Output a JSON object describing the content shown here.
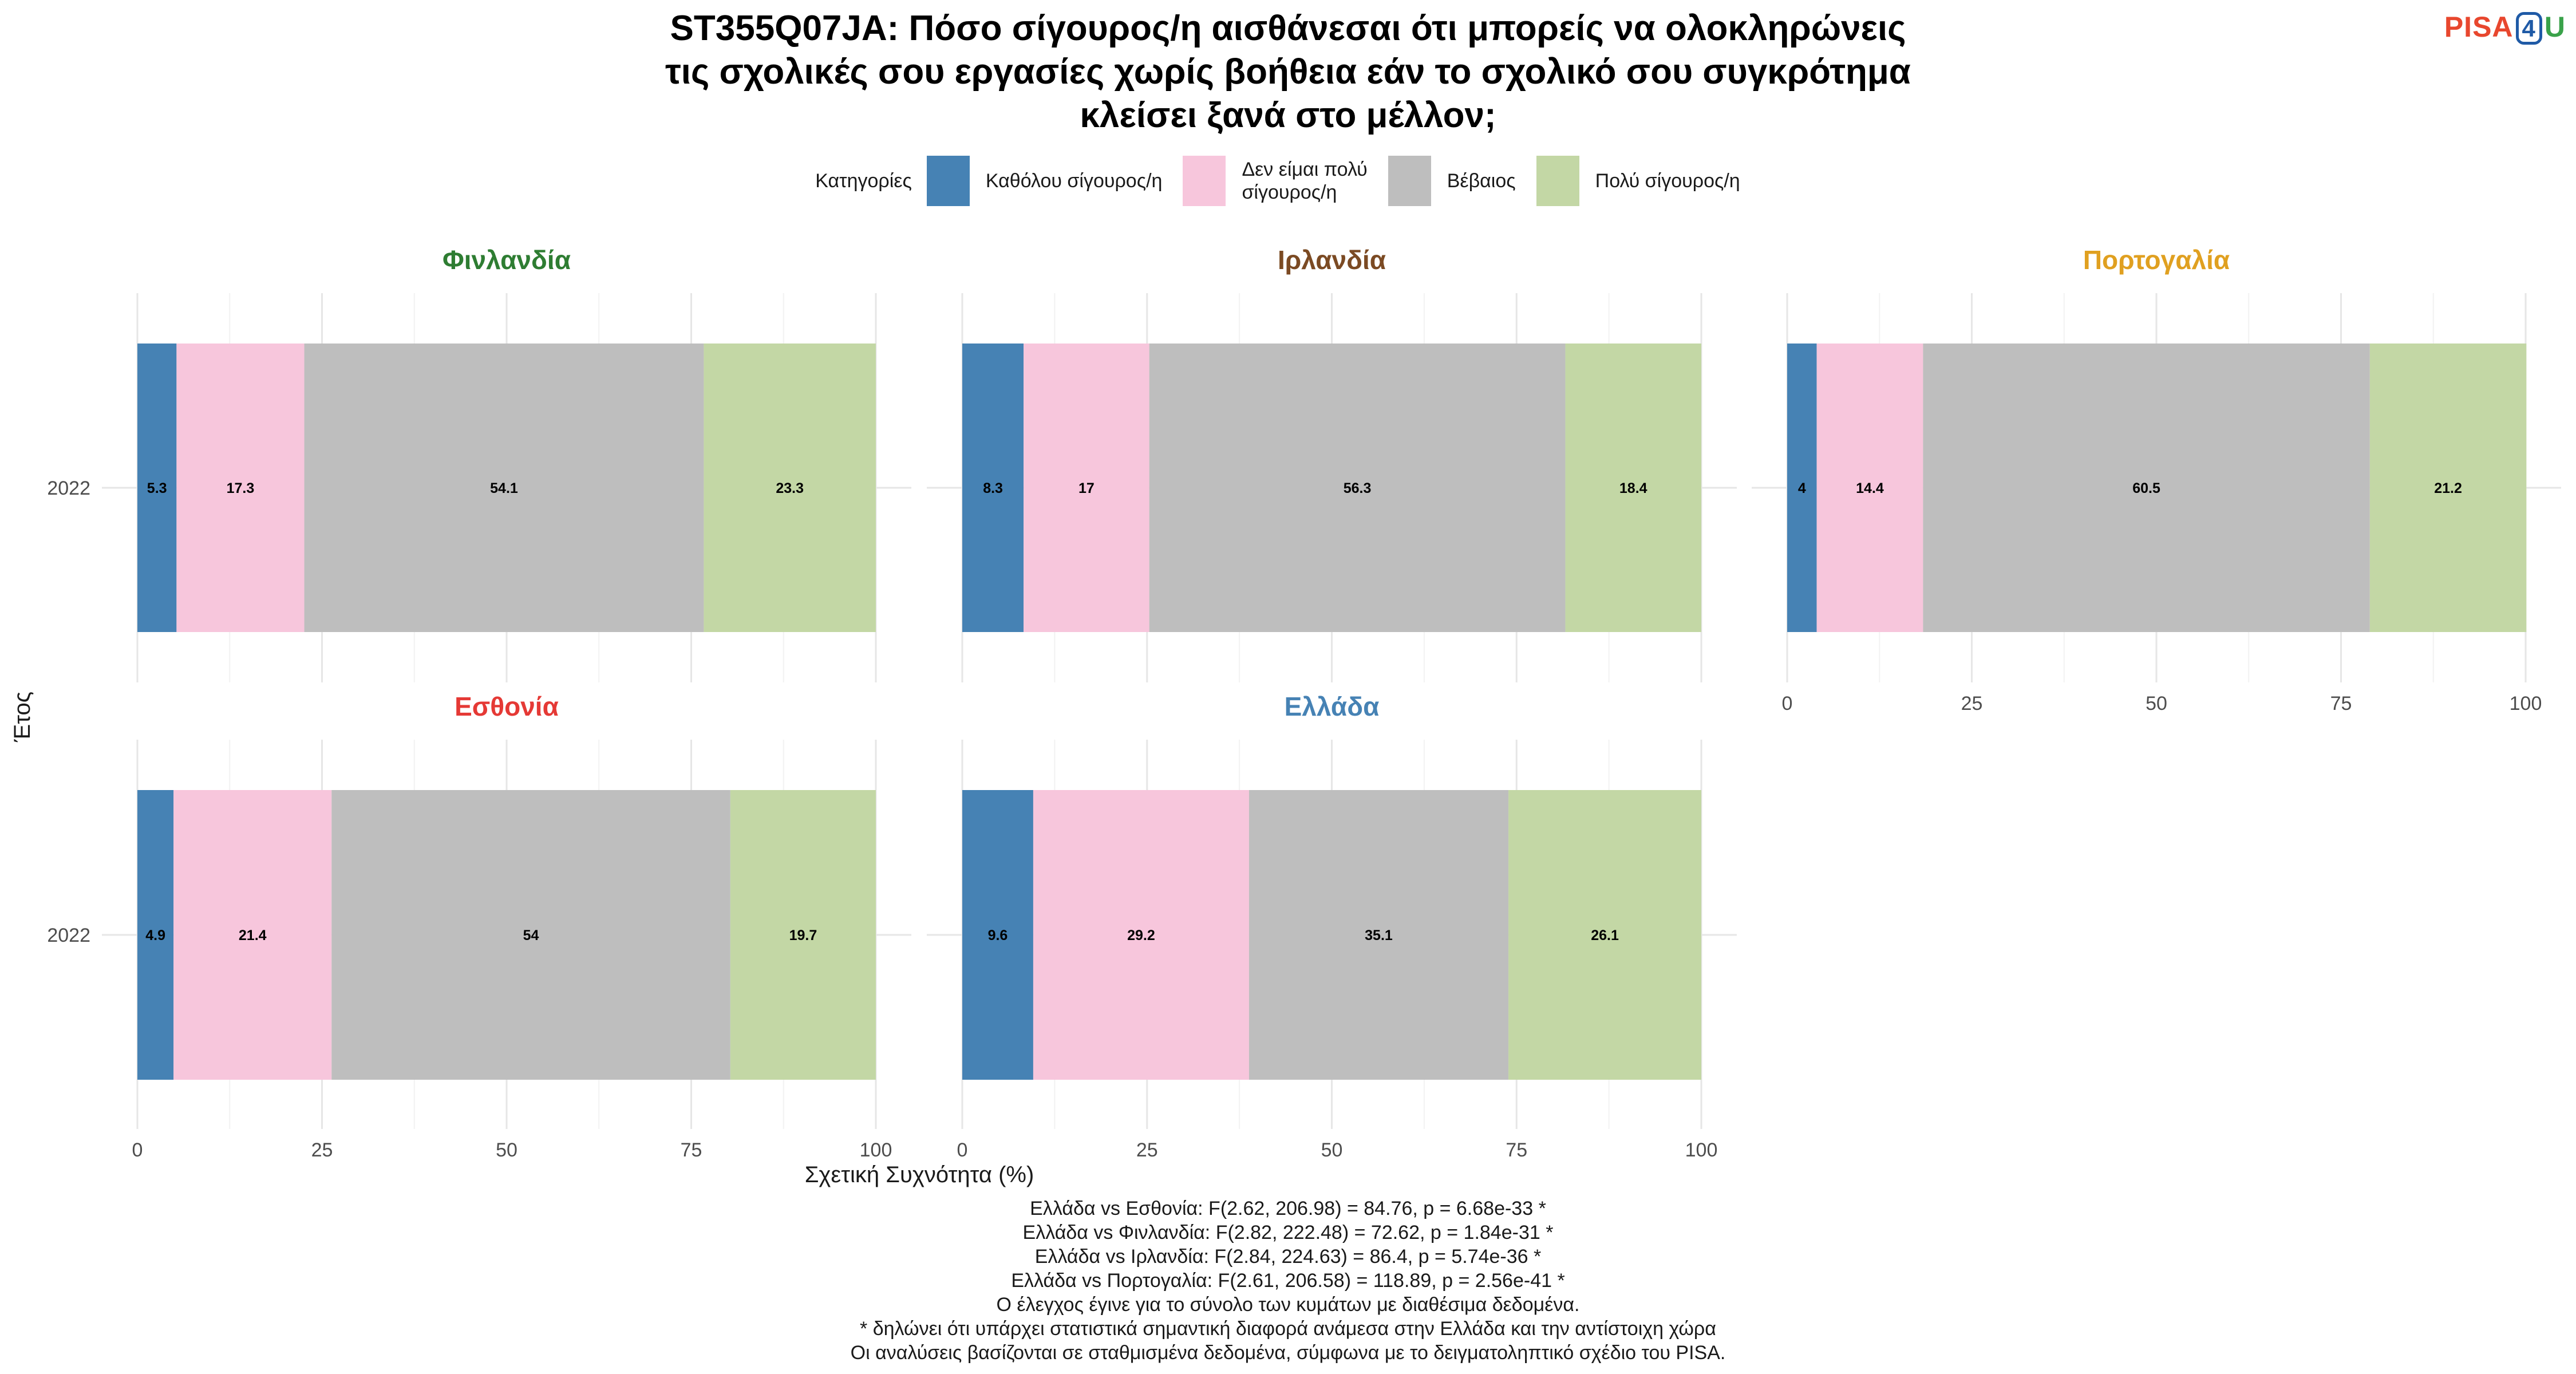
{
  "title_lines": [
    "ST355Q07JA: Πόσο σίγουρος/η αισθάνεσαι ότι μπορείς να ολοκληρώνεις",
    "τις σχολικές σου εργασίες χωρίς βοήθεια εάν το σχολικό σου συγκρότημα",
    "κλείσει ξανά στο μέλλον;"
  ],
  "logo": {
    "part1": "PISA",
    "part2": "4",
    "part3": "U",
    "colors": {
      "part1": "#e8472e",
      "part2": "#1f5aa6",
      "part3": "#3aa24a"
    }
  },
  "legend": {
    "title": "Κατηγορίες",
    "items": [
      {
        "label": "Καθόλου σίγουρος/η",
        "color": "#4682b4"
      },
      {
        "label": "Δεν είμαι πολύ\nσίγουρος/η",
        "color": "#f7c6dc"
      },
      {
        "label": "Βέβαιος",
        "color": "#bebebe"
      },
      {
        "label": "Πολύ σίγουρος/η",
        "color": "#c3d7a5"
      }
    ]
  },
  "chart_data": {
    "type": "bar",
    "orientation": "horizontal",
    "stacked": true,
    "xlabel": "Σχετική Συχνότητα (%)",
    "ylabel": "Έτος",
    "xlim": [
      0,
      100
    ],
    "xticks": [
      0,
      25,
      50,
      75,
      100
    ],
    "grid": true,
    "legend_position": "top",
    "categories": [
      "Καθόλου σίγουρος/η",
      "Δεν είμαι πολύ σίγουρος/η",
      "Βέβαιος",
      "Πολύ σίγουρος/η"
    ],
    "colors": [
      "#4682b4",
      "#f7c6dc",
      "#bebebe",
      "#c3d7a5"
    ],
    "panels": [
      {
        "country": "Φινλανδία",
        "title_color": "#2e7d32",
        "year": "2022",
        "values": [
          5.3,
          17.3,
          54.1,
          23.3
        ]
      },
      {
        "country": "Ιρλανδία",
        "title_color": "#7b4a23",
        "year": "2022",
        "values": [
          8.3,
          17,
          56.3,
          18.4
        ]
      },
      {
        "country": "Πορτογαλία",
        "title_color": "#e0a020",
        "year": "2022",
        "values": [
          4,
          14.4,
          60.5,
          21.2
        ]
      },
      {
        "country": "Εσθονία",
        "title_color": "#e53935",
        "year": "2022",
        "values": [
          4.9,
          21.4,
          54,
          19.7
        ]
      },
      {
        "country": "Ελλάδα",
        "title_color": "#4682b4",
        "year": "2022",
        "values": [
          9.6,
          29.2,
          35.1,
          26.1
        ]
      }
    ]
  },
  "notes": [
    "Ελλάδα vs Εσθονία: F(2.62, 206.98) = 84.76, p = 6.68e-33 *",
    "Ελλάδα vs Φινλανδία: F(2.82, 222.48) = 72.62, p = 1.84e-31 *",
    "Ελλάδα vs Ιρλανδία: F(2.84, 224.63) = 86.4, p = 5.74e-36 *",
    "Ελλάδα vs Πορτογαλία: F(2.61, 206.58) = 118.89, p = 2.56e-41 *",
    "Ο έλεγχος έγινε για το σύνολο των κυμάτων με διαθέσιμα δεδομένα.",
    "* δηλώνει ότι υπάρχει στατιστικά σημαντική διαφορά ανάμεσα στην Ελλάδα και την αντίστοιχη χώρα",
    "Οι αναλύσεις βασίζονται σε σταθμισμένα δεδομένα, σύμφωνα με το δειγματοληπτικό σχέδιο του PISA."
  ]
}
